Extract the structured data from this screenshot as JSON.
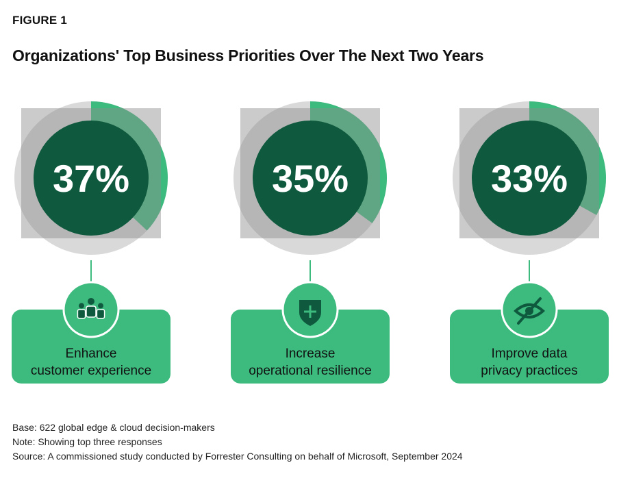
{
  "header": {
    "figure_label": "FIGURE 1",
    "title": "Organizations' Top Business Priorities Over The Next Two Years"
  },
  "chart_data": {
    "type": "pie",
    "title": "Organizations' Top Business Priorities Over The Next Two Years",
    "xlabel": "",
    "ylabel": "",
    "unit": "%",
    "categories": [
      "Enhance customer experience",
      "Increase operational resilience",
      "Improve data privacy practices"
    ],
    "values": [
      37,
      35,
      33
    ],
    "value_labels": [
      "37%",
      "35%",
      "33%"
    ],
    "caption_lines": [
      [
        "Enhance",
        "customer experience"
      ],
      [
        "Increase",
        "operational resilience"
      ],
      [
        "Improve data",
        "privacy practices"
      ]
    ],
    "icons": [
      "people-group-icon",
      "shield-plus-icon",
      "eye-slash-icon"
    ],
    "grid": false,
    "legend": "none"
  },
  "colors": {
    "dark_green": "#0f5a3e",
    "accent_green": "#3dbb7f",
    "ring_gray": "#d9d9d9",
    "overlay_gray": "#8c8c8c",
    "text": "#111111"
  },
  "footer": {
    "base": "Base: 622 global edge & cloud decision-makers",
    "note": "Note: Showing top three responses",
    "source": "Source: A commissioned study conducted by Forrester Consulting on behalf of Microsoft, September 2024"
  }
}
